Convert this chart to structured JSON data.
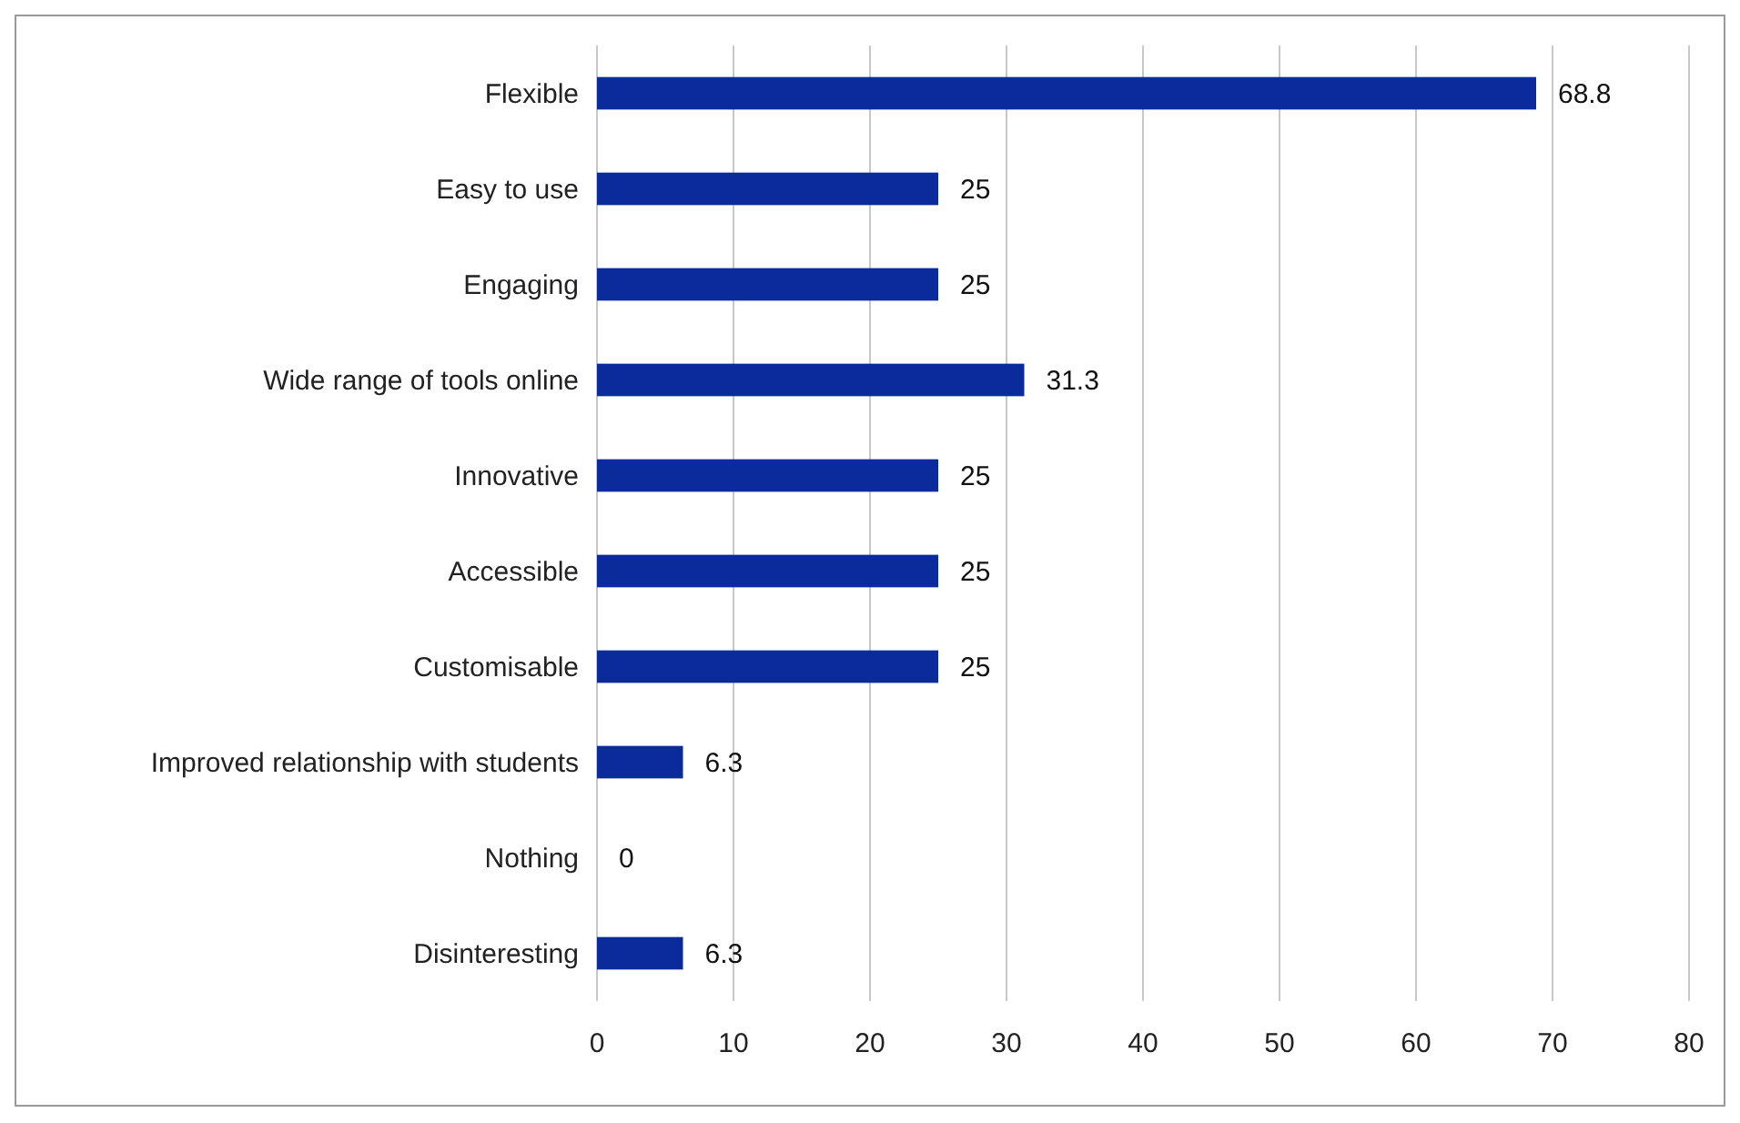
{
  "chart_data": {
    "type": "bar",
    "orientation": "horizontal",
    "categories": [
      "Flexible",
      "Easy to use",
      "Engaging",
      "Wide range of tools online",
      "Innovative",
      "Accessible",
      "Customisable",
      "Improved relationship with students",
      "Nothing",
      "Disinteresting"
    ],
    "values": [
      68.8,
      25,
      25,
      31.3,
      25,
      25,
      25,
      6.3,
      0,
      6.3
    ],
    "color": "#0b2a9c",
    "xlim": [
      0,
      80
    ],
    "xticks": [
      0,
      10,
      20,
      30,
      40,
      50,
      60,
      70,
      80
    ],
    "grid": "x",
    "data_labels": true
  }
}
